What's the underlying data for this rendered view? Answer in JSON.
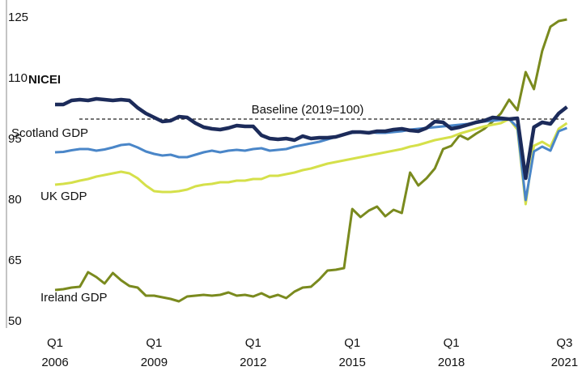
{
  "chart_data": {
    "type": "line",
    "categories": [
      "Q1 2006",
      null,
      null,
      null,
      null,
      null,
      null,
      null,
      null,
      null,
      null,
      null,
      "Q1 2009",
      null,
      null,
      null,
      null,
      null,
      null,
      null,
      null,
      null,
      null,
      null,
      "Q1 2012",
      null,
      null,
      null,
      null,
      null,
      null,
      null,
      null,
      null,
      null,
      null,
      "Q1 2015",
      null,
      null,
      null,
      null,
      null,
      null,
      null,
      null,
      null,
      null,
      null,
      "Q1 2018",
      null,
      null,
      null,
      null,
      null,
      null,
      null,
      null,
      null,
      null,
      null,
      null,
      null,
      "Q3 2021"
    ],
    "series": [
      {
        "name": "NICEI",
        "color": "#1c2b5a",
        "values": [
          103.6,
          103.6,
          104.6,
          104.8,
          104.6,
          105.0,
          104.8,
          104.6,
          104.8,
          104.6,
          102.8,
          101.4,
          100.4,
          99.4,
          99.6,
          100.6,
          100.4,
          99.0,
          98.0,
          97.6,
          97.4,
          97.8,
          98.4,
          98.2,
          98.2,
          96.0,
          95.2,
          95.0,
          95.2,
          94.8,
          95.8,
          95.2,
          95.4,
          95.4,
          95.6,
          96.2,
          96.8,
          96.8,
          96.6,
          97.0,
          97.0,
          97.4,
          97.6,
          97.2,
          97.0,
          97.8,
          99.4,
          99.2,
          97.6,
          98.0,
          98.6,
          99.2,
          99.6,
          100.4,
          100.2,
          100.0,
          100.2,
          85.4,
          98.0,
          99.2,
          98.8,
          101.4,
          103.0
        ]
      },
      {
        "name": "Scotland GDP",
        "color": "#4a86c8",
        "values": [
          91.8,
          91.9,
          92.3,
          92.6,
          92.6,
          92.2,
          92.5,
          93.0,
          93.6,
          93.8,
          93.0,
          92.0,
          91.4,
          91.0,
          91.2,
          90.6,
          90.6,
          91.2,
          91.8,
          92.2,
          91.8,
          92.2,
          92.4,
          92.2,
          92.6,
          92.8,
          92.2,
          92.4,
          92.6,
          93.2,
          93.6,
          94.0,
          94.4,
          95.0,
          95.6,
          96.2,
          96.6,
          96.8,
          96.8,
          96.6,
          96.6,
          96.8,
          97.0,
          97.4,
          97.6,
          97.8,
          98.0,
          98.2,
          98.4,
          98.6,
          98.8,
          99.2,
          99.4,
          99.6,
          99.8,
          100.0,
          98.0,
          80.0,
          92.0,
          93.2,
          92.2,
          97.0,
          97.8
        ]
      },
      {
        "name": "UK GDP",
        "color": "#d5e04a",
        "values": [
          83.8,
          84.0,
          84.3,
          84.8,
          85.2,
          85.8,
          86.2,
          86.6,
          87.0,
          86.6,
          85.4,
          83.6,
          82.2,
          82.0,
          82.0,
          82.2,
          82.6,
          83.4,
          83.8,
          84.0,
          84.4,
          84.4,
          84.8,
          84.8,
          85.2,
          85.2,
          86.0,
          86.0,
          86.4,
          86.8,
          87.4,
          87.8,
          88.4,
          89.0,
          89.4,
          89.8,
          90.2,
          90.6,
          91.0,
          91.4,
          91.8,
          92.2,
          92.6,
          93.2,
          93.6,
          94.2,
          94.8,
          95.2,
          95.6,
          96.4,
          97.0,
          97.6,
          98.2,
          98.6,
          99.0,
          100.0,
          97.4,
          79.0,
          93.4,
          94.4,
          93.2,
          97.6,
          99.0
        ]
      },
      {
        "name": "Ireland GDP",
        "color": "#7a8a1e",
        "values": [
          57.8,
          58.0,
          58.4,
          58.6,
          62.2,
          61.0,
          59.4,
          62.0,
          60.2,
          58.8,
          58.4,
          56.4,
          56.4,
          56.0,
          55.6,
          55.0,
          56.2,
          56.4,
          56.6,
          56.4,
          56.6,
          57.2,
          56.4,
          56.6,
          56.2,
          57.0,
          56.0,
          56.6,
          55.8,
          57.4,
          58.4,
          58.6,
          60.4,
          62.6,
          62.8,
          63.2,
          77.8,
          75.8,
          77.4,
          78.4,
          76.0,
          77.6,
          76.8,
          86.8,
          83.6,
          85.4,
          87.8,
          92.6,
          93.4,
          96.0,
          95.0,
          96.4,
          97.6,
          99.4,
          101.4,
          104.8,
          102.2,
          111.6,
          107.4,
          116.8,
          122.8,
          124.2,
          124.6
        ]
      }
    ],
    "baseline": {
      "value": 100,
      "label": "Baseline (2019=100)"
    },
    "ylim": [
      50,
      125
    ],
    "yticks": [
      50,
      65,
      80,
      95,
      110,
      125
    ],
    "grid": false
  }
}
